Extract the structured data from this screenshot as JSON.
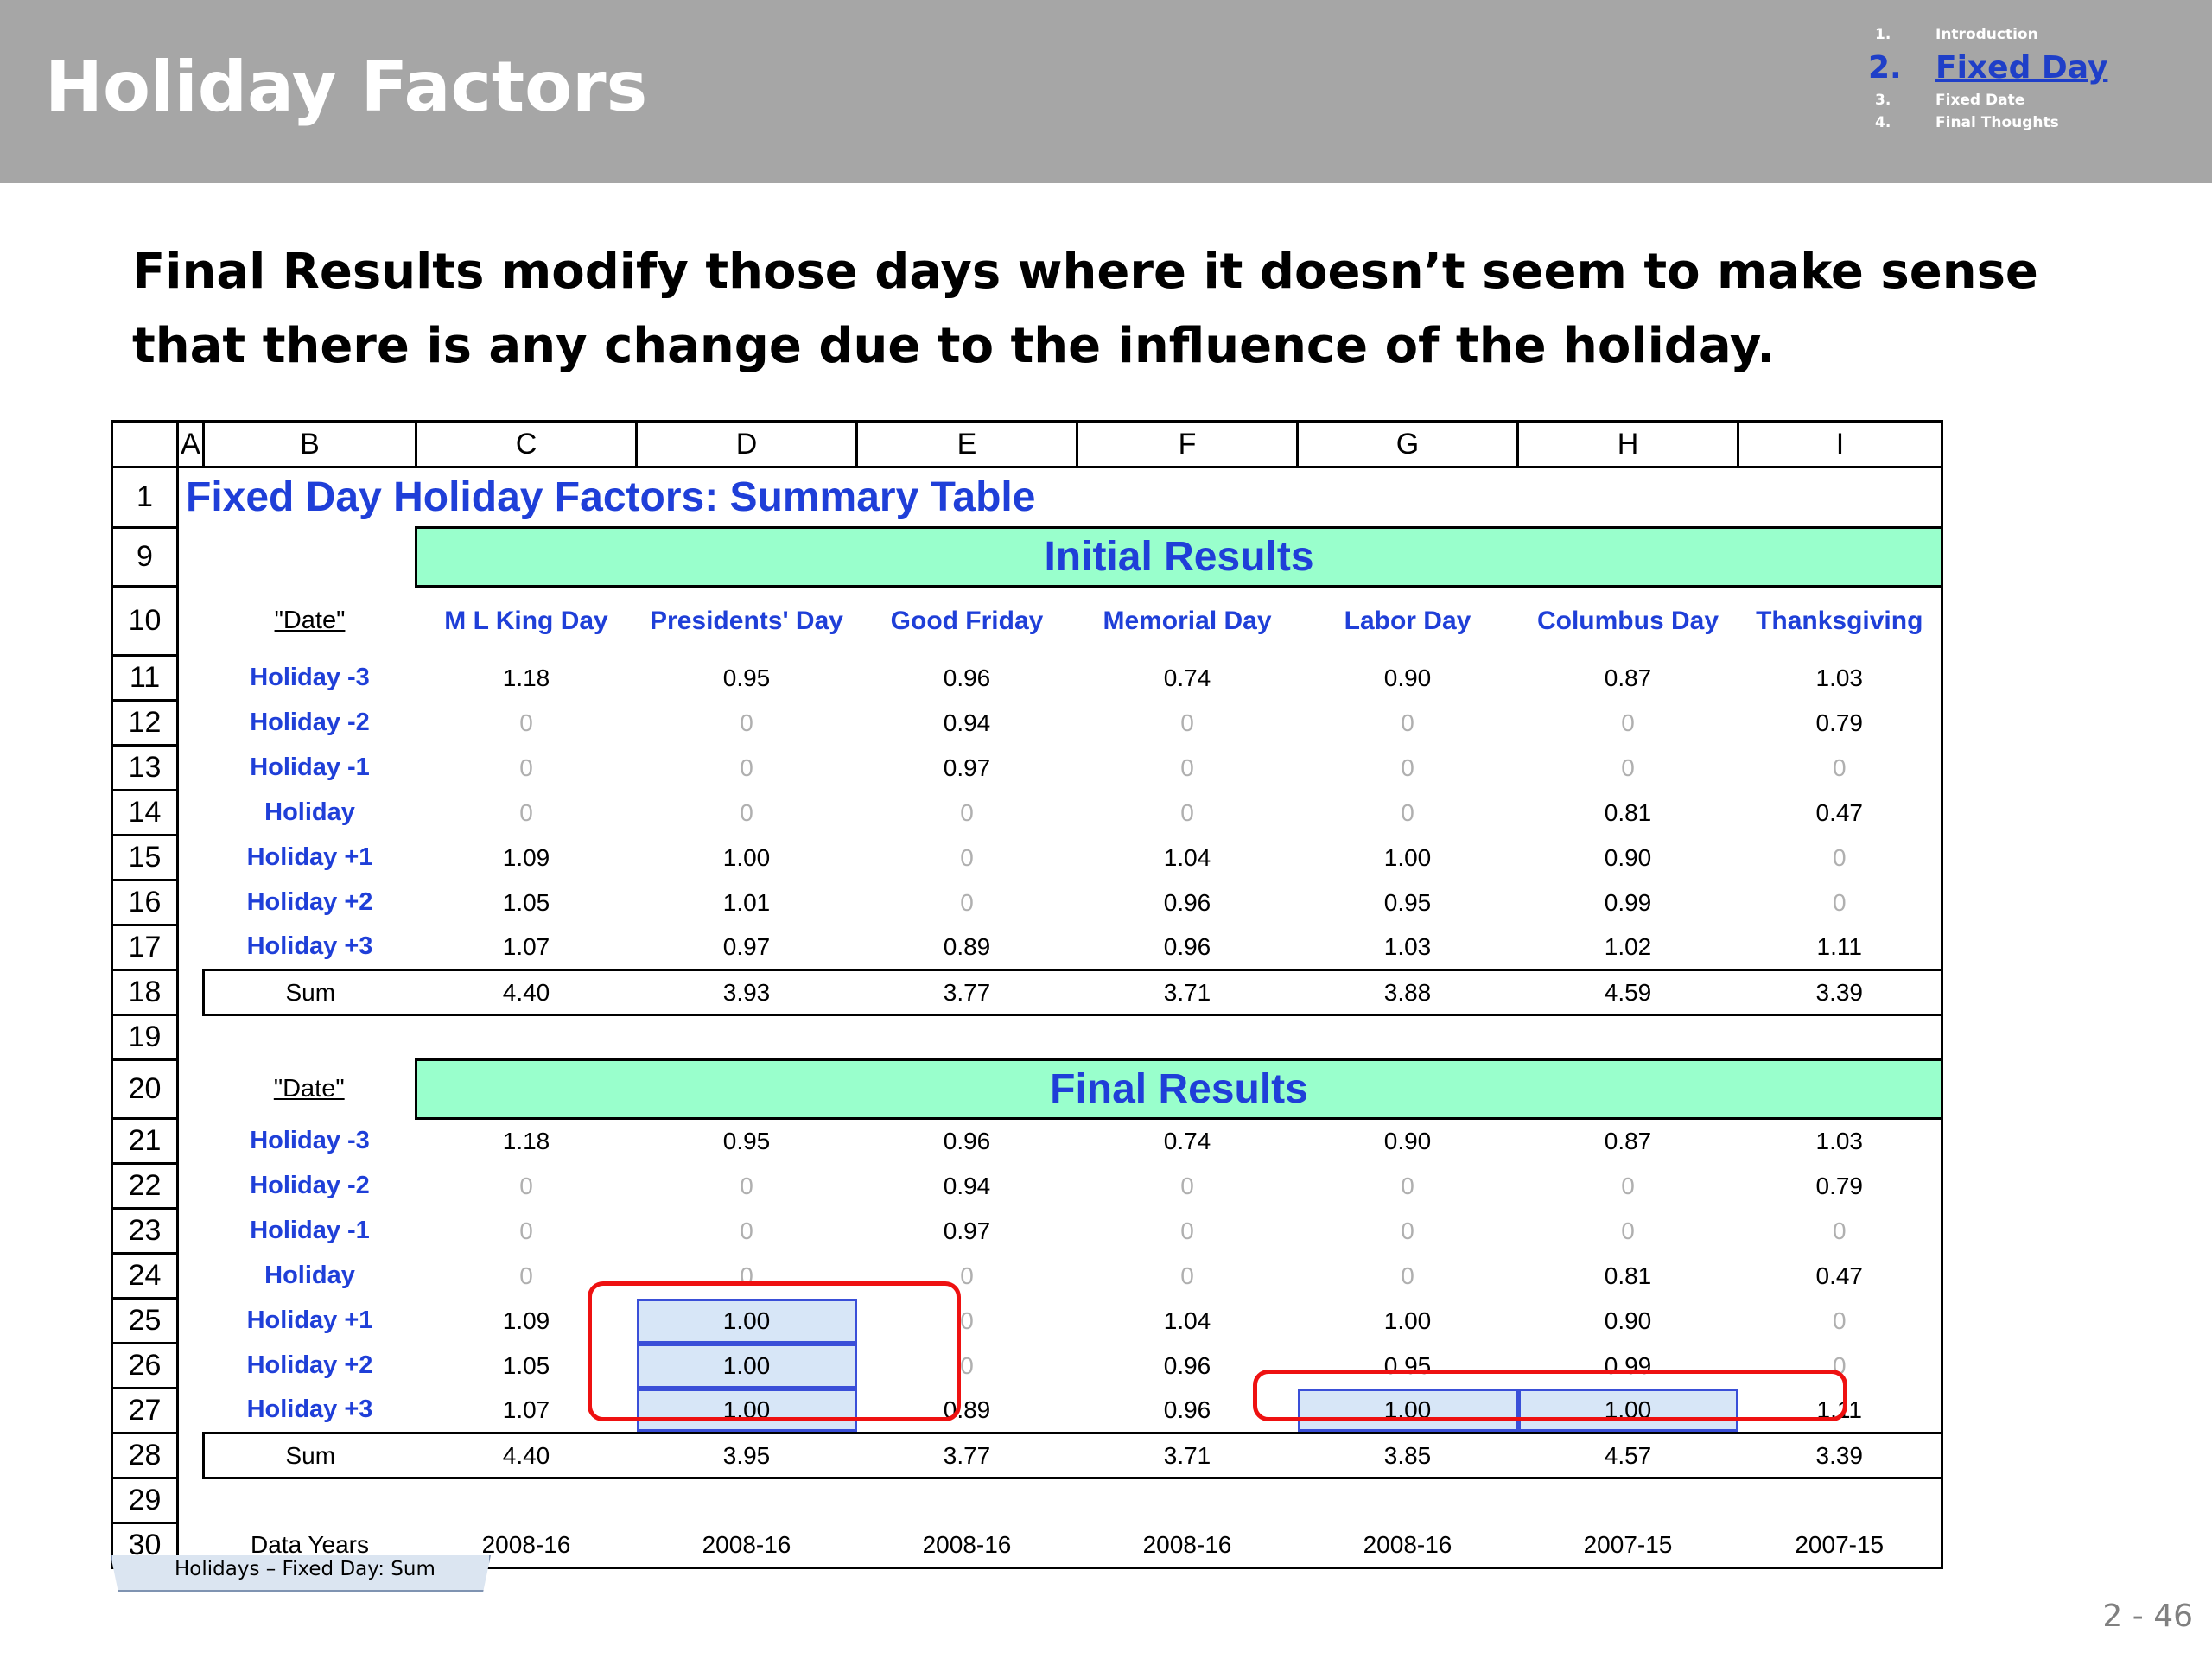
{
  "slide": {
    "title": "Holiday Factors",
    "subtitle": "Final Results modify those days where it doesn’t seem to make sense that there is any change due to the influence of the holiday.",
    "page_number": "2 -  46"
  },
  "nav": [
    {
      "num": "1.",
      "label": "Introduction"
    },
    {
      "num": "2.",
      "label": "Fixed Day"
    },
    {
      "num": "3.",
      "label": "Fixed Date"
    },
    {
      "num": "4.",
      "label": "Final Thoughts"
    }
  ],
  "sheet": {
    "columns": [
      "A",
      "B",
      "C",
      "D",
      "E",
      "F",
      "G",
      "H",
      "I"
    ],
    "title": "Fixed Day Holiday Factors: Summary Table",
    "initial_header": "Initial Results",
    "final_header": "Final Results",
    "date_label": "\"Date\"",
    "holidays": [
      "M L King Day",
      "Presidents' Day",
      "Good Friday",
      "Memorial Day",
      "Labor Day",
      "Columbus Day",
      "Thanksgiving"
    ],
    "initial_rows": [
      {
        "row": "11",
        "label": "Holiday -3",
        "values": [
          "1.18",
          "0.95",
          "0.96",
          "0.74",
          "0.90",
          "0.87",
          "1.03"
        ]
      },
      {
        "row": "12",
        "label": "Holiday -2",
        "values": [
          "0",
          "0",
          "0.94",
          "0",
          "0",
          "0",
          "0.79"
        ]
      },
      {
        "row": "13",
        "label": "Holiday -1",
        "values": [
          "0",
          "0",
          "0.97",
          "0",
          "0",
          "0",
          "0"
        ]
      },
      {
        "row": "14",
        "label": "Holiday",
        "values": [
          "0",
          "0",
          "0",
          "0",
          "0",
          "0.81",
          "0.47"
        ]
      },
      {
        "row": "15",
        "label": "Holiday +1",
        "values": [
          "1.09",
          "1.00",
          "0",
          "1.04",
          "1.00",
          "0.90",
          "0"
        ]
      },
      {
        "row": "16",
        "label": "Holiday +2",
        "values": [
          "1.05",
          "1.01",
          "0",
          "0.96",
          "0.95",
          "0.99",
          "0"
        ]
      },
      {
        "row": "17",
        "label": "Holiday +3",
        "values": [
          "1.07",
          "0.97",
          "0.89",
          "0.96",
          "1.03",
          "1.02",
          "1.11"
        ]
      }
    ],
    "initial_sum": {
      "row": "18",
      "label": "Sum",
      "values": [
        "4.40",
        "3.93",
        "3.77",
        "3.71",
        "3.88",
        "4.59",
        "3.39"
      ]
    },
    "final_rows": [
      {
        "row": "21",
        "label": "Holiday -3",
        "values": [
          "1.18",
          "0.95",
          "0.96",
          "0.74",
          "0.90",
          "0.87",
          "1.03"
        ]
      },
      {
        "row": "22",
        "label": "Holiday -2",
        "values": [
          "0",
          "0",
          "0.94",
          "0",
          "0",
          "0",
          "0.79"
        ]
      },
      {
        "row": "23",
        "label": "Holiday -1",
        "values": [
          "0",
          "0",
          "0.97",
          "0",
          "0",
          "0",
          "0"
        ]
      },
      {
        "row": "24",
        "label": "Holiday",
        "values": [
          "0",
          "0",
          "0",
          "0",
          "0",
          "0.81",
          "0.47"
        ]
      },
      {
        "row": "25",
        "label": "Holiday +1",
        "values": [
          "1.09",
          "1.00",
          "0",
          "1.04",
          "1.00",
          "0.90",
          "0"
        ]
      },
      {
        "row": "26",
        "label": "Holiday +2",
        "values": [
          "1.05",
          "1.00",
          "0",
          "0.96",
          "0.95",
          "0.99",
          "0"
        ]
      },
      {
        "row": "27",
        "label": "Holiday +3",
        "values": [
          "1.07",
          "1.00",
          "0.89",
          "0.96",
          "1.00",
          "1.00",
          "1.11"
        ]
      }
    ],
    "final_sum": {
      "row": "28",
      "label": "Sum",
      "values": [
        "4.40",
        "3.95",
        "3.77",
        "3.71",
        "3.85",
        "4.57",
        "3.39"
      ]
    },
    "data_years": {
      "row": "30",
      "label": "Data Years",
      "values": [
        "2008-16",
        "2008-16",
        "2008-16",
        "2008-16",
        "2008-16",
        "2007-15",
        "2007-15"
      ]
    },
    "row_numbers": {
      "title": "1",
      "initial": "9",
      "header": "10",
      "blank1": "19",
      "final": "20",
      "blank2": "29"
    },
    "sheet_tab": "Holidays – Fixed Day:  Sum"
  }
}
